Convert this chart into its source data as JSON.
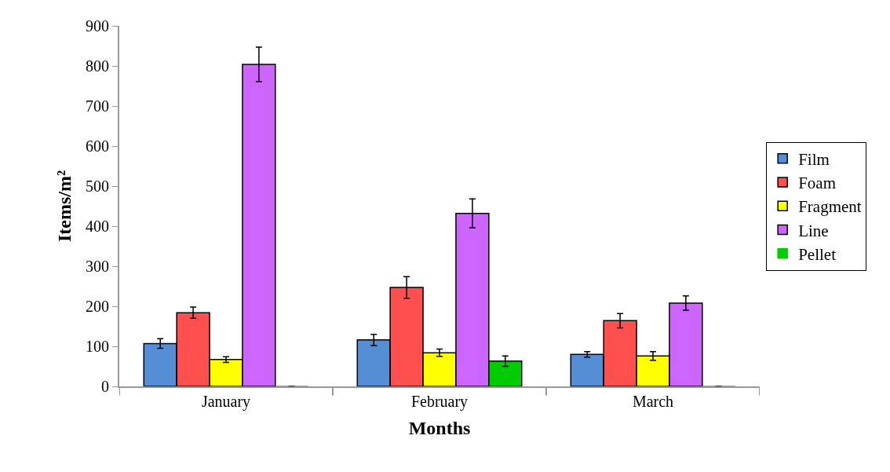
{
  "chart_data": {
    "type": "bar",
    "xlabel": "Months",
    "ylabel": "Items/m²",
    "categories": [
      "January",
      "February",
      "March"
    ],
    "series": [
      {
        "name": "Film",
        "color": "#558ed5",
        "values": [
          107,
          116,
          80
        ],
        "errors": [
          12,
          14,
          7
        ]
      },
      {
        "name": "Foam",
        "color": "#ff5050",
        "values": [
          184,
          247,
          164
        ],
        "errors": [
          14,
          27,
          18
        ]
      },
      {
        "name": "Fragment",
        "color": "#ffff00",
        "values": [
          67,
          84,
          76
        ],
        "errors": [
          7,
          9,
          11
        ]
      },
      {
        "name": "Line",
        "color": "#cc66ff",
        "values": [
          804,
          432,
          208
        ],
        "errors": [
          43,
          36,
          18
        ]
      },
      {
        "name": "Pellet",
        "color": "#00cc00",
        "values": [
          0,
          63,
          0
        ],
        "errors": [
          null,
          13,
          null
        ]
      }
    ],
    "ylim": [
      0,
      900
    ],
    "yticks": [
      0,
      100,
      200,
      300,
      400,
      500,
      600,
      700,
      800,
      900
    ],
    "legend": "right"
  }
}
